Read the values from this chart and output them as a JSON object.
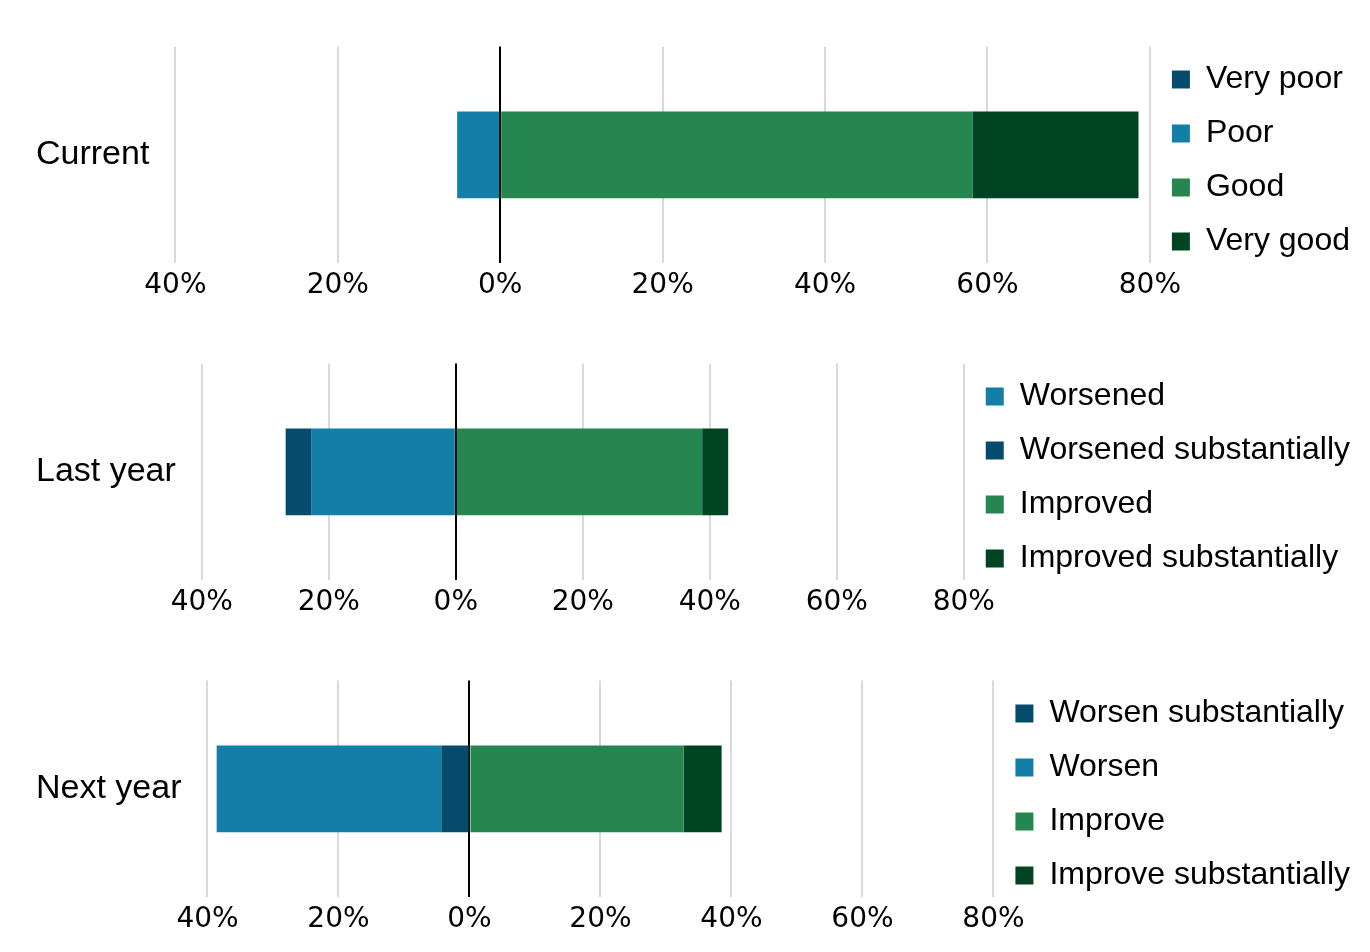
{
  "chart_data": [
    {
      "type": "bar",
      "orientation": "horizontal",
      "stacked": true,
      "grid": "x",
      "legend": "right",
      "categories": [
        "Current"
      ],
      "xlim": [
        -40,
        80
      ],
      "xticks": [
        {
          "value": -40,
          "label": "40%"
        },
        {
          "value": -20,
          "label": "20%"
        },
        {
          "value": 0,
          "label": "0%"
        },
        {
          "value": 20,
          "label": "20%"
        },
        {
          "value": 40,
          "label": "40%"
        },
        {
          "value": 60,
          "label": "60%"
        },
        {
          "value": 80,
          "label": "80%"
        }
      ],
      "series": [
        {
          "name": "Very poor",
          "color": "#054c6c",
          "values": [
            0
          ]
        },
        {
          "name": "Poor",
          "color": "#137fa8",
          "values": [
            -5.3
          ]
        },
        {
          "name": "Good",
          "color": "#258650",
          "values": [
            58.2
          ]
        },
        {
          "name": "Very good",
          "color": "#014421",
          "values": [
            20.4
          ]
        }
      ]
    },
    {
      "type": "bar",
      "orientation": "horizontal",
      "stacked": true,
      "grid": "x",
      "legend": "right",
      "categories": [
        "Last year"
      ],
      "xlim": [
        -40,
        80
      ],
      "xticks": [
        {
          "value": -40,
          "label": "40%"
        },
        {
          "value": -20,
          "label": "20%"
        },
        {
          "value": 0,
          "label": "0%"
        },
        {
          "value": 20,
          "label": "20%"
        },
        {
          "value": 40,
          "label": "40%"
        },
        {
          "value": 60,
          "label": "60%"
        },
        {
          "value": 80,
          "label": "80%"
        }
      ],
      "series": [
        {
          "name": "Worsened",
          "color": "#137fa8",
          "values": [
            -22.7
          ]
        },
        {
          "name": "Worsened substantially",
          "color": "#054c6c",
          "values": [
            -4.1
          ]
        },
        {
          "name": "Improved",
          "color": "#258650",
          "values": [
            38.8
          ]
        },
        {
          "name": "Improved substantially",
          "color": "#014421",
          "values": [
            4.1
          ]
        }
      ]
    },
    {
      "type": "bar",
      "orientation": "horizontal",
      "stacked": true,
      "grid": "x",
      "legend": "right",
      "categories": [
        "Next year"
      ],
      "xlim": [
        -40,
        80
      ],
      "xticks": [
        {
          "value": -40,
          "label": "40%"
        },
        {
          "value": -20,
          "label": "20%"
        },
        {
          "value": 0,
          "label": "0%"
        },
        {
          "value": 20,
          "label": "20%"
        },
        {
          "value": 40,
          "label": "40%"
        },
        {
          "value": 60,
          "label": "60%"
        },
        {
          "value": 80,
          "label": "80%"
        }
      ],
      "series": [
        {
          "name": "Worsen substantially",
          "color": "#054c6c",
          "values": [
            -4.3
          ]
        },
        {
          "name": "Worsen",
          "color": "#137fa8",
          "values": [
            -34.3
          ]
        },
        {
          "name": "Improve",
          "color": "#258650",
          "values": [
            32.7
          ]
        },
        {
          "name": "Improve substantially",
          "color": "#014421",
          "values": [
            5.8
          ]
        }
      ]
    }
  ]
}
